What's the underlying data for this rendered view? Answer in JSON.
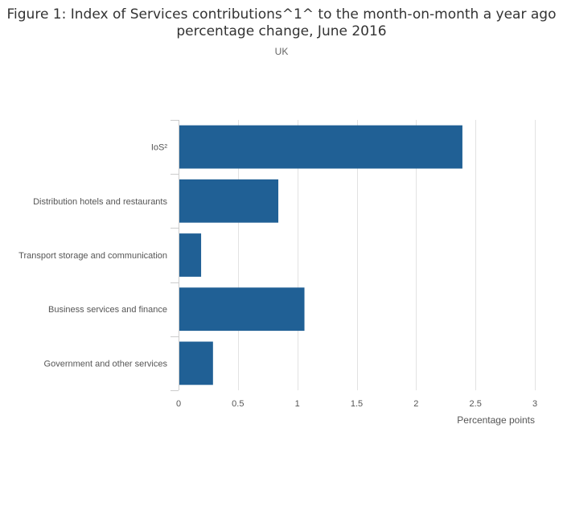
{
  "chart_data": {
    "type": "bar",
    "orientation": "horizontal",
    "title": "Figure 1: Index of Services contributions^1^ to the month-on-month a year ago percentage change, June 2016",
    "subtitle": "UK",
    "xlabel": "Percentage points",
    "ylabel": "",
    "categories": [
      "IoS²",
      "Distribution hotels and restaurants",
      "Transport storage and communication",
      "Business services and finance",
      "Government and other services"
    ],
    "values": [
      2.39,
      0.84,
      0.19,
      1.06,
      0.29
    ],
    "xlim": [
      0,
      3
    ],
    "xticks": [
      0,
      0.5,
      1,
      1.5,
      2,
      2.5,
      3
    ],
    "xtick_labels": [
      "0",
      "0.5",
      "1",
      "1.5",
      "2",
      "2.5",
      "3"
    ],
    "grid": true,
    "legend": "none",
    "bar_color": "#206095"
  }
}
